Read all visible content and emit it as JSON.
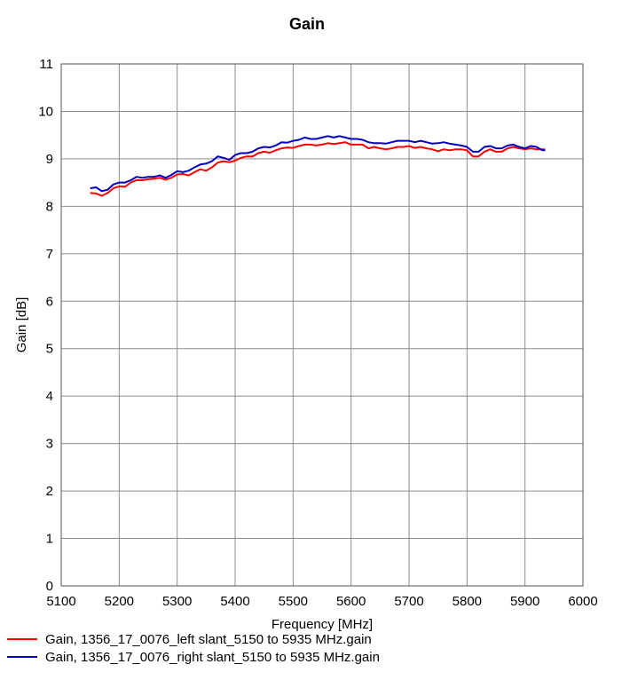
{
  "chart_data": {
    "type": "line",
    "title": "Gain",
    "xlabel": "Frequency [MHz]",
    "ylabel": "Gain [dB]",
    "xlim": [
      5100,
      6000
    ],
    "ylim": [
      0,
      11
    ],
    "xticks": [
      5100,
      5200,
      5300,
      5400,
      5500,
      5600,
      5700,
      5800,
      5900,
      6000
    ],
    "yticks": [
      0,
      1,
      2,
      3,
      4,
      5,
      6,
      7,
      8,
      9,
      10,
      11
    ],
    "grid": true,
    "legend_position": "bottom-left",
    "series": [
      {
        "name": "Gain, 1356_17_0076_left slant_5150 to 5935 MHz.gain",
        "color": "#ff0000",
        "x": [
          5150,
          5160,
          5170,
          5180,
          5190,
          5200,
          5210,
          5220,
          5230,
          5240,
          5250,
          5260,
          5270,
          5280,
          5290,
          5300,
          5310,
          5320,
          5330,
          5340,
          5350,
          5360,
          5370,
          5380,
          5390,
          5400,
          5410,
          5420,
          5430,
          5440,
          5450,
          5460,
          5470,
          5480,
          5490,
          5500,
          5510,
          5520,
          5530,
          5540,
          5550,
          5560,
          5570,
          5580,
          5590,
          5600,
          5610,
          5620,
          5630,
          5640,
          5650,
          5660,
          5670,
          5680,
          5690,
          5700,
          5710,
          5720,
          5730,
          5740,
          5750,
          5760,
          5770,
          5780,
          5790,
          5800,
          5810,
          5820,
          5830,
          5840,
          5850,
          5860,
          5870,
          5880,
          5890,
          5900,
          5910,
          5920,
          5930,
          5935
        ],
        "y": [
          8.28,
          8.27,
          8.22,
          8.28,
          8.38,
          8.42,
          8.41,
          8.5,
          8.55,
          8.55,
          8.57,
          8.58,
          8.6,
          8.56,
          8.6,
          8.67,
          8.68,
          8.65,
          8.72,
          8.78,
          8.75,
          8.82,
          8.92,
          8.95,
          8.93,
          8.96,
          9.02,
          9.05,
          9.05,
          9.12,
          9.15,
          9.13,
          9.18,
          9.22,
          9.24,
          9.23,
          9.27,
          9.3,
          9.3,
          9.28,
          9.3,
          9.33,
          9.31,
          9.33,
          9.35,
          9.3,
          9.3,
          9.3,
          9.22,
          9.25,
          9.22,
          9.2,
          9.22,
          9.25,
          9.25,
          9.27,
          9.23,
          9.25,
          9.22,
          9.2,
          9.16,
          9.2,
          9.18,
          9.2,
          9.2,
          9.18,
          9.05,
          9.05,
          9.15,
          9.2,
          9.15,
          9.15,
          9.22,
          9.25,
          9.22,
          9.2,
          9.22,
          9.2,
          9.2,
          9.2
        ]
      },
      {
        "name": "Gain, 1356_17_0076_right slant_5150 to 5935 MHz.gain",
        "color": "#0000c0",
        "x": [
          5150,
          5160,
          5170,
          5180,
          5190,
          5200,
          5210,
          5220,
          5230,
          5240,
          5250,
          5260,
          5270,
          5280,
          5290,
          5300,
          5310,
          5320,
          5330,
          5340,
          5350,
          5360,
          5370,
          5380,
          5390,
          5400,
          5410,
          5420,
          5430,
          5440,
          5450,
          5460,
          5470,
          5480,
          5490,
          5500,
          5510,
          5520,
          5530,
          5540,
          5550,
          5560,
          5570,
          5580,
          5590,
          5600,
          5610,
          5620,
          5630,
          5640,
          5650,
          5660,
          5670,
          5680,
          5690,
          5700,
          5710,
          5720,
          5730,
          5740,
          5750,
          5760,
          5770,
          5780,
          5790,
          5800,
          5810,
          5820,
          5830,
          5840,
          5850,
          5860,
          5870,
          5880,
          5890,
          5900,
          5910,
          5920,
          5930,
          5935
        ],
        "y": [
          8.38,
          8.4,
          8.32,
          8.35,
          8.46,
          8.5,
          8.5,
          8.55,
          8.62,
          8.6,
          8.62,
          8.62,
          8.65,
          8.6,
          8.66,
          8.74,
          8.72,
          8.75,
          8.82,
          8.88,
          8.9,
          8.95,
          9.05,
          9.02,
          8.98,
          9.08,
          9.12,
          9.12,
          9.15,
          9.22,
          9.25,
          9.24,
          9.28,
          9.35,
          9.34,
          9.38,
          9.4,
          9.45,
          9.42,
          9.42,
          9.45,
          9.48,
          9.45,
          9.48,
          9.45,
          9.42,
          9.42,
          9.4,
          9.35,
          9.33,
          9.33,
          9.32,
          9.35,
          9.38,
          9.38,
          9.38,
          9.35,
          9.38,
          9.35,
          9.32,
          9.33,
          9.35,
          9.32,
          9.3,
          9.28,
          9.25,
          9.15,
          9.15,
          9.25,
          9.27,
          9.22,
          9.22,
          9.28,
          9.3,
          9.25,
          9.22,
          9.27,
          9.25,
          9.18,
          9.18
        ]
      }
    ]
  }
}
